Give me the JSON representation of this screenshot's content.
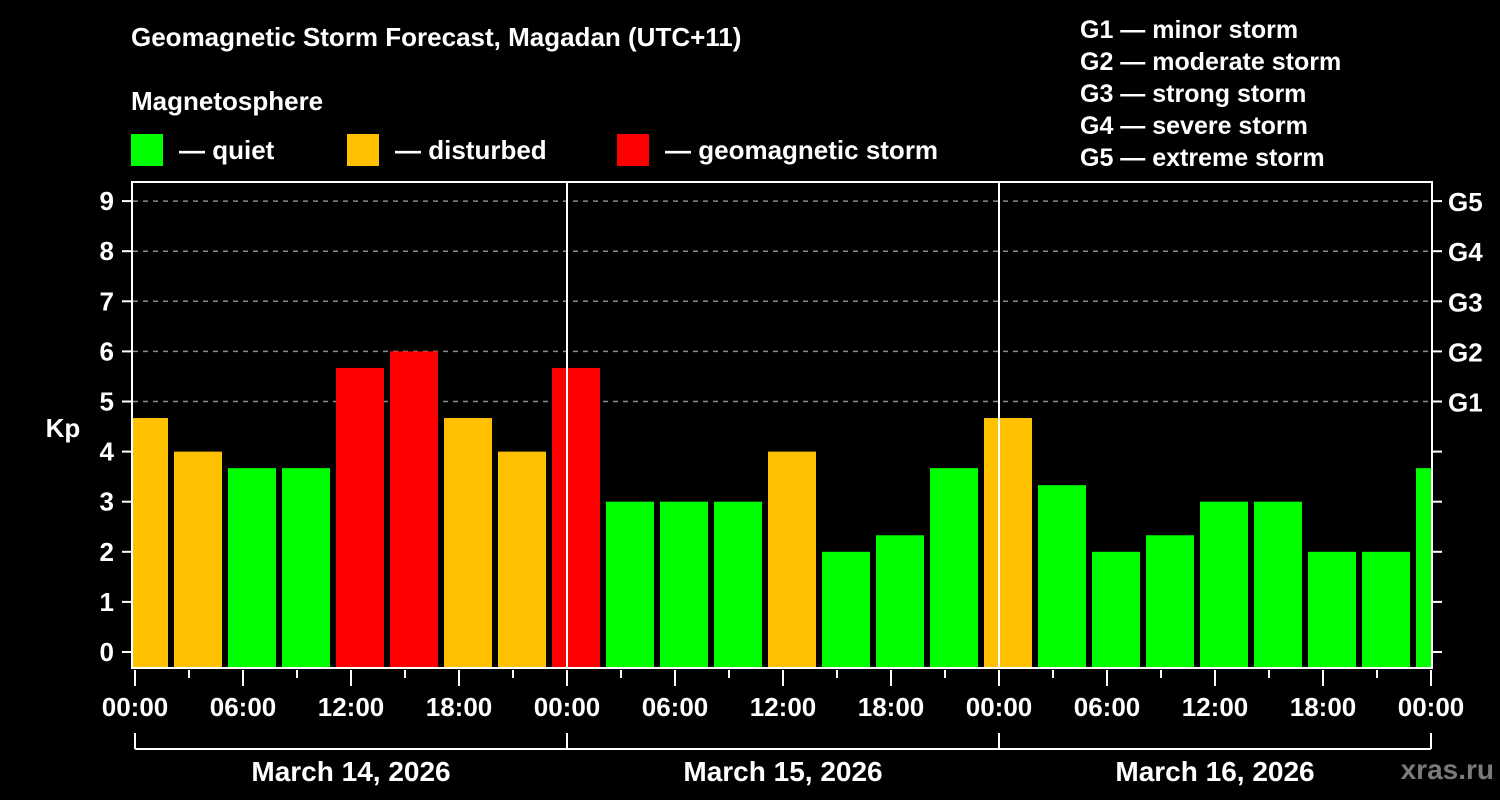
{
  "header": {
    "title": "Geomagnetic Storm Forecast, Magadan (UTC+11)",
    "subtitle": "Magnetosphere"
  },
  "legend": [
    {
      "label": "— quiet",
      "color": "#00ff00"
    },
    {
      "label": "— disturbed",
      "color": "#ffc000"
    },
    {
      "label": "— geomagnetic storm",
      "color": "#ff0000"
    }
  ],
  "storm_scale": [
    "G1 — minor storm",
    "G2 — moderate storm",
    "G3 — strong storm",
    "G4 — severe storm",
    "G5 — extreme storm"
  ],
  "watermark": "xras.ru",
  "chart_data": {
    "type": "bar",
    "title": "Geomagnetic Storm Forecast, Magadan (UTC+11)",
    "xlabel": "",
    "ylabel": "Kp",
    "ylim": [
      0,
      9
    ],
    "grid": true,
    "yticks": [
      0,
      1,
      2,
      3,
      4,
      5,
      6,
      7,
      8,
      9
    ],
    "right_ticks": [
      {
        "value": 5,
        "label": "G1"
      },
      {
        "value": 6,
        "label": "G2"
      },
      {
        "value": 7,
        "label": "G3"
      },
      {
        "value": 8,
        "label": "G4"
      },
      {
        "value": 9,
        "label": "G5"
      }
    ],
    "xtick_labels": [
      "00:00",
      "06:00",
      "12:00",
      "18:00",
      "00:00",
      "06:00",
      "12:00",
      "18:00",
      "00:00",
      "06:00",
      "12:00",
      "18:00",
      "00:00"
    ],
    "days": [
      "March 14, 2026",
      "March 15, 2026",
      "March 16, 2026"
    ],
    "categories": [
      "Mar 14 00-03",
      "Mar 14 03-06",
      "Mar 14 06-09",
      "Mar 14 09-12",
      "Mar 14 12-15",
      "Mar 14 15-18",
      "Mar 14 18-21",
      "Mar 14 21-24",
      "Mar 15 00-03",
      "Mar 15 03-06",
      "Mar 15 06-09",
      "Mar 15 09-12",
      "Mar 15 12-15",
      "Mar 15 15-18",
      "Mar 15 18-21",
      "Mar 15 21-24",
      "Mar 16 00-03",
      "Mar 16 03-06",
      "Mar 16 06-09",
      "Mar 16 09-12",
      "Mar 16 12-15",
      "Mar 16 15-18",
      "Mar 16 18-21",
      "Mar 16 21-24",
      "Mar 17 00-03"
    ],
    "values": [
      4.67,
      4.0,
      3.67,
      3.67,
      5.67,
      6.0,
      4.67,
      4.0,
      5.67,
      3.0,
      3.0,
      3.0,
      4.0,
      2.0,
      2.33,
      3.67,
      4.67,
      3.33,
      2.0,
      2.33,
      3.0,
      3.0,
      2.0,
      2.0,
      3.67
    ],
    "levels": [
      "disturbed",
      "disturbed",
      "quiet",
      "quiet",
      "storm",
      "storm",
      "disturbed",
      "disturbed",
      "storm",
      "quiet",
      "quiet",
      "quiet",
      "disturbed",
      "quiet",
      "quiet",
      "quiet",
      "disturbed",
      "quiet",
      "quiet",
      "quiet",
      "quiet",
      "quiet",
      "quiet",
      "quiet",
      "quiet"
    ],
    "colors": {
      "quiet": "#00ff00",
      "disturbed": "#ffc000",
      "storm": "#ff0000"
    }
  }
}
